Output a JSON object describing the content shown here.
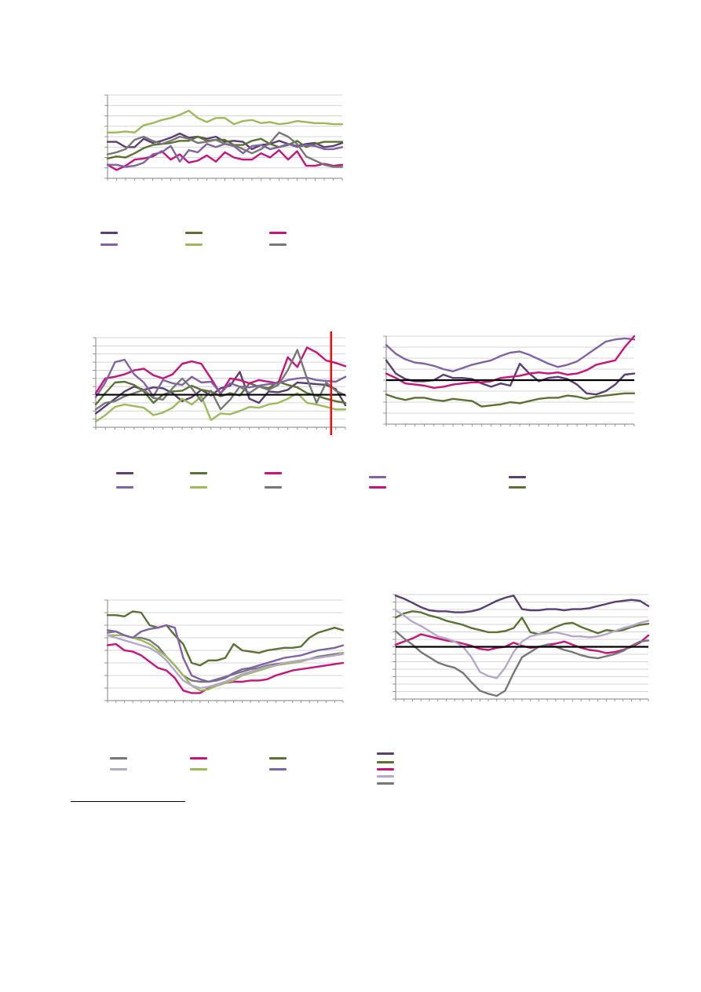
{
  "colors": {
    "dark_purple": "#5b3e73",
    "olive": "#5a7330",
    "magenta": "#c8127d",
    "purple": "#8062a5",
    "light_green": "#9bbb59",
    "gray": "#777777",
    "lavender": "#b7a6cc",
    "red_line": "#ff0000",
    "grid": "#c8c8c8",
    "axis": "#808080",
    "zero": "#000000"
  },
  "chart_data": [
    {
      "id": "chart1",
      "type": "line",
      "title": "",
      "xlabel": "",
      "ylabel": "",
      "ylim": [
        0,
        8
      ],
      "yticks": 8,
      "grid": true,
      "legend": "below",
      "series": [
        {
          "color": "dark_purple",
          "values": [
            3.5,
            3.5,
            3.0,
            3.0,
            3.8,
            3.4,
            3.6,
            3.9,
            4.3,
            3.9,
            4.0,
            3.8,
            4.0,
            3.5,
            3.6,
            3.5,
            2.8,
            3.2,
            3.3,
            3.6,
            3.3,
            3.1,
            3.3,
            3.4,
            3.0,
            3.1,
            3.4
          ]
        },
        {
          "color": "olive",
          "values": [
            1.9,
            2.1,
            2.0,
            2.4,
            2.9,
            3.2,
            3.3,
            3.4,
            3.6,
            3.6,
            4.0,
            3.6,
            3.7,
            3.7,
            3.2,
            3.2,
            3.6,
            3.8,
            3.3,
            3.0,
            3.2,
            3.6,
            3.0,
            3.3,
            3.5,
            3.5,
            3.5
          ]
        },
        {
          "color": "magenta",
          "values": [
            1.3,
            0.8,
            1.2,
            1.8,
            1.9,
            2.1,
            2.6,
            1.8,
            2.3,
            1.5,
            1.7,
            2.2,
            1.6,
            2.5,
            2.0,
            1.8,
            1.8,
            2.4,
            2.0,
            2.7,
            1.8,
            2.6,
            1.2,
            1.2,
            1.4,
            1.2,
            1.3
          ]
        },
        {
          "color": "purple",
          "values": [
            1.3,
            1.3,
            1.1,
            1.2,
            1.5,
            2.3,
            2.5,
            3.1,
            1.6,
            2.7,
            2.5,
            3.3,
            3.0,
            3.3,
            3.1,
            2.4,
            3.1,
            3.2,
            2.8,
            3.0,
            3.3,
            3.0,
            3.2,
            3.1,
            2.8,
            2.8,
            3.0
          ]
        },
        {
          "color": "light_green",
          "values": [
            4.4,
            4.4,
            4.5,
            4.4,
            5.1,
            5.3,
            5.6,
            5.8,
            6.1,
            6.5,
            5.8,
            5.4,
            5.8,
            5.8,
            5.2,
            5.5,
            5.6,
            5.3,
            5.4,
            5.2,
            5.3,
            5.5,
            5.4,
            5.3,
            5.3,
            5.2,
            5.2
          ]
        },
        {
          "color": "gray",
          "values": [
            2.3,
            2.5,
            2.8,
            3.7,
            4.0,
            3.6,
            3.3,
            3.6,
            4.0,
            3.8,
            3.4,
            3.5,
            3.7,
            3.3,
            3.2,
            2.8,
            2.4,
            2.8,
            3.4,
            4.4,
            4.0,
            3.3,
            2.1,
            1.7,
            1.3,
            1.1,
            1.1
          ]
        }
      ]
    },
    {
      "id": "chart2",
      "type": "line",
      "title": "",
      "xlabel": "",
      "ylabel": "",
      "ylim": [
        -4,
        7
      ],
      "yticks": 11,
      "zero_line": 0,
      "marker_x": 25,
      "grid": true,
      "legend": "below",
      "series": [
        {
          "color": "dark_purple",
          "values": [
            -2.3,
            -1.4,
            -0.5,
            0.4,
            1.0,
            0.6,
            0.9,
            0.8,
            0.2,
            -0.8,
            -0.3,
            0.6,
            -0.1,
            0.8,
            1.1,
            2.8,
            -0.5,
            -1.0,
            0.4,
            0.3,
            0.6,
            1.5,
            1.4,
            1.3,
            1.2,
            0.7,
            -1.3
          ]
        },
        {
          "color": "olive",
          "values": [
            -1.2,
            0.2,
            1.5,
            1.6,
            1.2,
            0.4,
            -1.0,
            0.0,
            0.4,
            0.5,
            1.1,
            0.6,
            0.4,
            -0.2,
            0.2,
            -0.1,
            1.4,
            1.0,
            0.8,
            1.6,
            1.2,
            0.9,
            0.2,
            -0.1,
            -0.5,
            -0.8,
            -1.0
          ]
        },
        {
          "color": "magenta",
          "values": [
            0.2,
            2.0,
            2.2,
            2.5,
            3.0,
            3.2,
            2.4,
            2.0,
            2.5,
            3.8,
            4.1,
            3.8,
            2.0,
            0.1,
            2.0,
            1.8,
            1.4,
            1.8,
            1.6,
            1.4,
            4.6,
            3.4,
            5.8,
            5.2,
            4.2,
            3.9,
            3.5
          ]
        },
        {
          "color": "purple",
          "values": [
            -0.3,
            1.5,
            4.0,
            4.3,
            2.5,
            1.5,
            -0.2,
            1.8,
            1.4,
            1.2,
            2.2,
            1.5,
            1.6,
            0.2,
            1.4,
            1.0,
            0.9,
            1.1,
            1.3,
            1.4,
            1.8,
            2.0,
            2.1,
            1.8,
            1.7,
            1.6,
            2.2
          ]
        },
        {
          "color": "light_green",
          "values": [
            -3.3,
            -2.5,
            -1.5,
            -1.2,
            -1.4,
            -1.6,
            -2.5,
            -2.2,
            -1.6,
            -0.5,
            -1.2,
            -0.2,
            -3.1,
            -2.3,
            -2.4,
            -2.0,
            -1.5,
            -1.6,
            -1.2,
            -1.0,
            -0.5,
            0.2,
            -1.0,
            -1.2,
            -1.5,
            -1.8,
            -1.8
          ]
        },
        {
          "color": "gray",
          "values": [
            -1.8,
            -1.0,
            -0.8,
            -0.2,
            0.2,
            0.6,
            -0.4,
            -0.6,
            0.8,
            2.0,
            0.8,
            -0.8,
            0.5,
            -1.8,
            -0.6,
            1.0,
            0.2,
            1.0,
            0.6,
            1.2,
            3.0,
            5.5,
            2.0,
            -1.0,
            1.5,
            0.5,
            -0.1
          ]
        }
      ]
    },
    {
      "id": "chart3",
      "type": "line",
      "title": "",
      "xlabel": "",
      "ylabel": "",
      "ylim": [
        -4,
        4
      ],
      "yticks": 8,
      "zero_line": 0,
      "grid": true,
      "legend": "below",
      "series": [
        {
          "color": "purple",
          "values": [
            3.2,
            2.4,
            1.9,
            1.6,
            1.5,
            1.3,
            1.0,
            0.8,
            1.1,
            1.4,
            1.6,
            1.8,
            2.2,
            2.5,
            2.6,
            2.3,
            1.9,
            1.5,
            1.2,
            1.4,
            1.7,
            2.3,
            2.9,
            3.5,
            3.7,
            3.8,
            3.7
          ]
        },
        {
          "color": "dark_purple",
          "values": [
            1.8,
            0.6,
            0.1,
            -0.1,
            -0.1,
            0.0,
            0.5,
            0.2,
            0.2,
            0.1,
            -0.3,
            -0.6,
            -0.3,
            -0.5,
            1.5,
            0.6,
            -0.1,
            0.2,
            0.3,
            0.1,
            -0.4,
            -1.2,
            -1.3,
            -1.0,
            -0.4,
            0.5,
            0.6
          ]
        },
        {
          "color": "magenta",
          "values": [
            0.6,
            0.2,
            -0.3,
            -0.4,
            -0.5,
            -0.7,
            -0.6,
            -0.4,
            -0.3,
            -0.2,
            -0.2,
            -0.1,
            0.2,
            0.3,
            0.4,
            0.6,
            0.7,
            0.6,
            0.7,
            0.5,
            0.6,
            0.9,
            1.4,
            1.6,
            1.8,
            3.0,
            4.0
          ]
        },
        {
          "color": "olive",
          "values": [
            -1.3,
            -1.6,
            -1.8,
            -1.6,
            -1.6,
            -1.8,
            -1.9,
            -1.7,
            -1.8,
            -1.9,
            -2.4,
            -2.3,
            -2.2,
            -2.0,
            -2.1,
            -1.9,
            -1.7,
            -1.6,
            -1.6,
            -1.4,
            -1.5,
            -1.7,
            -1.5,
            -1.4,
            -1.3,
            -1.2,
            -1.2
          ]
        }
      ]
    },
    {
      "id": "chart4",
      "type": "line",
      "title": "",
      "xlabel": "",
      "ylabel": "",
      "ylim": [
        0,
        8
      ],
      "yticks": 8,
      "grid": true,
      "legend": "below",
      "series": [
        {
          "color": "gray",
          "values": [
            5.4,
            5.5,
            5.2,
            5.0,
            5.0,
            4.8,
            4.3,
            3.5,
            2.8,
            2.0,
            1.6,
            1.5,
            1.5,
            1.7,
            1.9,
            2.1,
            2.3,
            2.5,
            2.6,
            2.8,
            2.9,
            3.0,
            3.1,
            3.2,
            3.3,
            3.5,
            3.6,
            3.7,
            3.8
          ]
        },
        {
          "color": "magenta",
          "values": [
            4.4,
            4.5,
            4.0,
            3.9,
            3.6,
            3.1,
            2.6,
            2.4,
            1.8,
            0.8,
            0.6,
            0.6,
            1.0,
            1.2,
            1.4,
            1.5,
            1.5,
            1.6,
            1.6,
            1.7,
            2.0,
            2.2,
            2.4,
            2.5,
            2.6,
            2.7,
            2.8,
            2.9,
            3.0
          ]
        },
        {
          "color": "olive",
          "values": [
            6.8,
            6.8,
            6.7,
            7.1,
            7.0,
            6.0,
            5.8,
            6.0,
            5.2,
            4.5,
            3.0,
            2.8,
            3.2,
            3.2,
            3.4,
            4.5,
            4.0,
            3.9,
            3.8,
            4.0,
            4.1,
            4.2,
            4.2,
            4.3,
            5.0,
            5.4,
            5.6,
            5.8,
            5.6
          ]
        },
        {
          "color": "light_green",
          "values": [
            5.2,
            5.2,
            5.2,
            5.0,
            4.8,
            4.5,
            4.0,
            3.5,
            2.8,
            2.0,
            1.2,
            0.8,
            0.9,
            1.2,
            1.4,
            1.6,
            2.0,
            2.2,
            2.4,
            2.6,
            2.8,
            2.9,
            3.0,
            3.1,
            3.3,
            3.4,
            3.5,
            3.6,
            3.8
          ]
        },
        {
          "color": "purple",
          "values": [
            5.6,
            5.5,
            5.2,
            5.0,
            5.5,
            5.7,
            5.8,
            6.0,
            5.8,
            3.4,
            2.0,
            1.7,
            1.5,
            1.6,
            1.8,
            2.2,
            2.5,
            2.6,
            2.8,
            3.0,
            3.2,
            3.4,
            3.5,
            3.6,
            3.8,
            4.0,
            4.1,
            4.2,
            4.4
          ]
        },
        {
          "color": "lavender",
          "values": [
            5.2,
            5.0,
            4.8,
            4.6,
            4.4,
            4.2,
            3.8,
            3.2,
            2.4,
            1.6,
            1.2,
            1.0,
            1.1,
            1.3,
            1.5,
            1.8,
            2.1,
            2.3,
            2.5,
            2.7,
            2.8,
            3.0,
            3.1,
            3.2,
            3.3,
            3.4,
            3.5,
            3.6,
            3.7
          ]
        }
      ]
    },
    {
      "id": "chart5",
      "type": "line",
      "title": "",
      "xlabel": "",
      "ylabel": "",
      "ylim": [
        -5,
        5
      ],
      "yticks": 14,
      "zero_line": 0,
      "grid": true,
      "legend": "below",
      "series": [
        {
          "color": "dark_purple",
          "values": [
            4.9,
            4.6,
            4.2,
            3.8,
            3.5,
            3.4,
            3.4,
            3.3,
            3.3,
            3.4,
            3.6,
            4.0,
            4.4,
            4.7,
            4.9,
            3.6,
            3.5,
            3.5,
            3.6,
            3.6,
            3.5,
            3.6,
            3.6,
            3.7,
            3.9,
            4.1,
            4.3,
            4.4,
            4.5,
            4.4,
            3.9
          ]
        },
        {
          "color": "olive",
          "values": [
            2.8,
            3.2,
            3.4,
            3.3,
            3.0,
            2.8,
            2.5,
            2.3,
            2.1,
            1.8,
            1.6,
            1.4,
            1.4,
            1.5,
            1.8,
            2.8,
            1.4,
            1.2,
            1.5,
            1.9,
            2.2,
            2.3,
            1.9,
            1.6,
            1.3,
            1.6,
            1.5,
            1.6,
            1.9,
            2.1,
            2.2
          ]
        },
        {
          "color": "magenta",
          "values": [
            0.2,
            0.5,
            0.8,
            1.2,
            1.0,
            0.8,
            0.6,
            0.5,
            0.3,
            0.1,
            -0.2,
            -0.3,
            -0.1,
            0.0,
            0.4,
            0.1,
            -0.1,
            0.0,
            0.2,
            0.3,
            0.5,
            0.2,
            -0.1,
            -0.3,
            -0.4,
            -0.6,
            -0.5,
            -0.3,
            0.0,
            0.4,
            1.1
          ]
        },
        {
          "color": "lavender",
          "values": [
            3.5,
            3.0,
            2.4,
            2.0,
            1.5,
            1.0,
            0.8,
            0.5,
            0.0,
            -1.0,
            -2.4,
            -2.8,
            -3.0,
            -2.0,
            -0.5,
            0.5,
            1.0,
            1.2,
            1.3,
            1.4,
            1.2,
            1.0,
            1.0,
            0.9,
            1.0,
            1.2,
            1.5,
            1.8,
            2.0,
            2.3,
            2.5
          ]
        },
        {
          "color": "gray",
          "values": [
            1.5,
            0.8,
            0.2,
            -0.5,
            -1.0,
            -1.5,
            -1.8,
            -2.0,
            -2.5,
            -3.4,
            -4.2,
            -4.5,
            -4.7,
            -4.2,
            -2.5,
            -1.0,
            -0.5,
            0.0,
            0.2,
            0.0,
            -0.3,
            -0.5,
            -0.8,
            -1.0,
            -1.1,
            -0.9,
            -0.7,
            -0.4,
            0.1,
            0.5,
            0.6
          ]
        }
      ]
    }
  ],
  "legends": [
    {
      "id": "legend1",
      "items": [
        {
          "color": "dark_purple",
          "x": 128,
          "y": 295
        },
        {
          "color": "olive",
          "x": 236,
          "y": 295
        },
        {
          "color": "magenta",
          "x": 343,
          "y": 295
        },
        {
          "color": "purple",
          "x": 128,
          "y": 310
        },
        {
          "color": "light_green",
          "x": 236,
          "y": 310
        },
        {
          "color": "gray",
          "x": 343,
          "y": 310
        }
      ]
    },
    {
      "id": "legend2",
      "items": [
        {
          "color": "dark_purple",
          "x": 148,
          "y": 601
        },
        {
          "color": "olive",
          "x": 242,
          "y": 601
        },
        {
          "color": "magenta",
          "x": 337,
          "y": 601
        },
        {
          "color": "purple",
          "x": 470,
          "y": 606
        },
        {
          "color": "dark_purple",
          "x": 648,
          "y": 606
        },
        {
          "color": "purple",
          "x": 148,
          "y": 619
        },
        {
          "color": "light_green",
          "x": 242,
          "y": 619
        },
        {
          "color": "gray",
          "x": 337,
          "y": 619
        },
        {
          "color": "magenta",
          "x": 470,
          "y": 619
        },
        {
          "color": "olive",
          "x": 648,
          "y": 619
        }
      ]
    },
    {
      "id": "legend3",
      "items": [
        {
          "color": "gray",
          "x": 140,
          "y": 964
        },
        {
          "color": "magenta",
          "x": 242,
          "y": 964
        },
        {
          "color": "olive",
          "x": 343,
          "y": 964
        },
        {
          "color": "dark_purple",
          "x": 480,
          "y": 958
        },
        {
          "color": "lavender",
          "x": 140,
          "y": 978
        },
        {
          "color": "light_green",
          "x": 242,
          "y": 978
        },
        {
          "color": "purple",
          "x": 343,
          "y": 978
        },
        {
          "color": "olive",
          "x": 480,
          "y": 969
        },
        {
          "color": "magenta",
          "x": 480,
          "y": 978
        },
        {
          "color": "lavender",
          "x": 480,
          "y": 987
        },
        {
          "color": "gray",
          "x": 480,
          "y": 996
        }
      ]
    }
  ]
}
